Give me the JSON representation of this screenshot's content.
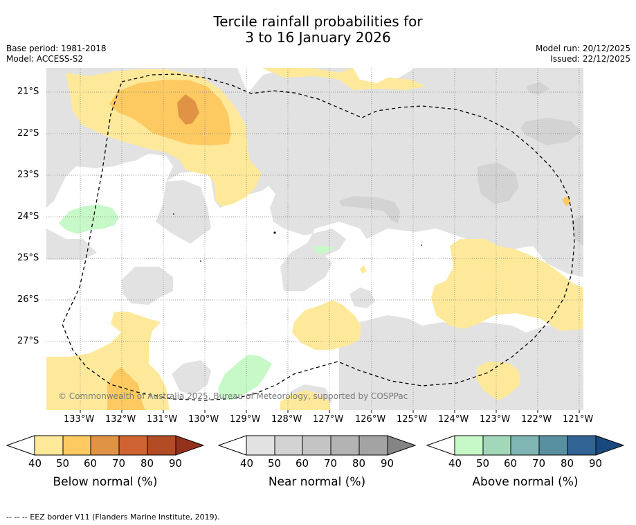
{
  "title": {
    "line1": "Tercile rainfall probabilities for",
    "line2": "3 to 16 January 2026"
  },
  "meta": {
    "base_period": "Base period: 1981-2018",
    "model": "Model: ACCESS-S2",
    "model_run": "Model run: 20/12/2025",
    "issued": "Issued: 22/12/2025"
  },
  "map": {
    "longitude_labels": [
      "133°W",
      "132°W",
      "131°W",
      "130°W",
      "129°W",
      "128°W",
      "127°W",
      "126°W",
      "125°W",
      "124°W",
      "123°W",
      "122°W",
      "121°W"
    ],
    "latitude_labels": [
      "21°S",
      "22°S",
      "23°S",
      "24°S",
      "25°S",
      "26°S",
      "27°S"
    ],
    "copyright": "© Commonwealth of Australia 2025, Bureau of Meteorology, supported by COSPPac",
    "colors": {
      "below_40": "#fee99b",
      "below_50": "#fdca62",
      "below_60": "#e09345",
      "near_40": "#e2e2e2",
      "near_50": "#d3d3d3",
      "above_40": "#c7f9c8",
      "eez_line": "#000000"
    }
  },
  "colorbars": [
    {
      "label": "Below normal (%)",
      "ticks": [
        "40",
        "50",
        "60",
        "70",
        "80",
        "90"
      ],
      "colors": [
        "#fee99b",
        "#fdca62",
        "#e09345",
        "#cf6331",
        "#b34c24",
        "#93311c"
      ]
    },
    {
      "label": "Near normal (%)",
      "ticks": [
        "40",
        "50",
        "60",
        "70",
        "80",
        "90"
      ],
      "colors": [
        "#e2e2e2",
        "#d3d3d3",
        "#c4c4c4",
        "#b3b3b3",
        "#a3a3a3",
        "#848484"
      ]
    },
    {
      "label": "Above normal (%)",
      "ticks": [
        "40",
        "50",
        "60",
        "70",
        "80",
        "90"
      ],
      "colors": [
        "#c7f9c8",
        "#a2d7ba",
        "#7fb5b2",
        "#5890a0",
        "#316494",
        "#19497c"
      ]
    }
  ],
  "footnote": "--  --  -- EEZ border V11 (Flanders Marine Institute, 2019)."
}
